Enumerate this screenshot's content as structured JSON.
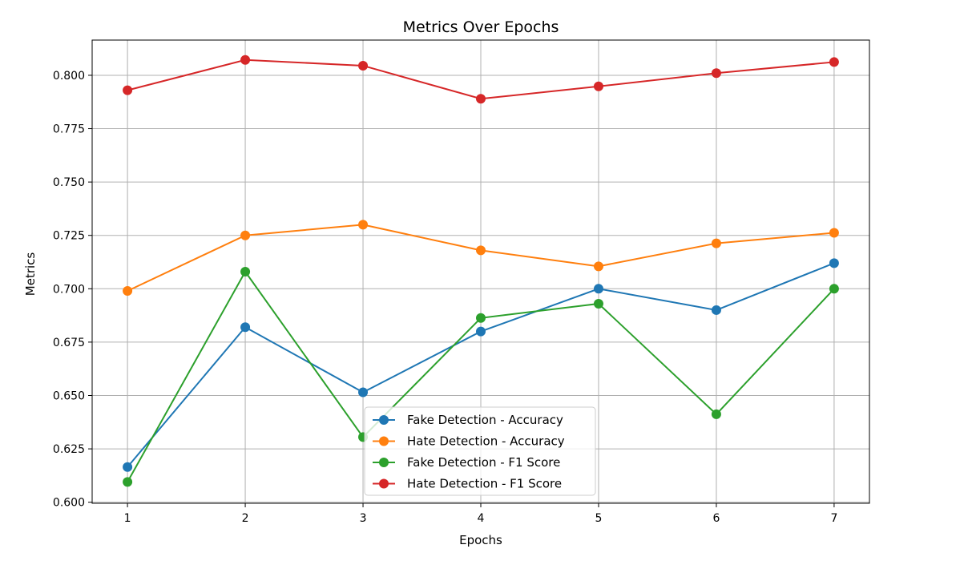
{
  "chart_data": {
    "type": "line",
    "title": "Metrics Over Epochs",
    "xlabel": "Epochs",
    "ylabel": "Metrics",
    "x": [
      1,
      2,
      3,
      4,
      5,
      6,
      7
    ],
    "xlim": [
      0.7,
      7.3
    ],
    "ylim": [
      0.5995,
      0.8165
    ],
    "yticks": [
      0.6,
      0.625,
      0.65,
      0.675,
      0.7,
      0.725,
      0.75,
      0.775,
      0.8
    ],
    "ytick_labels": [
      "0.600",
      "0.625",
      "0.650",
      "0.675",
      "0.700",
      "0.725",
      "0.750",
      "0.775",
      "0.800"
    ],
    "xticks": [
      1,
      2,
      3,
      4,
      5,
      6,
      7
    ],
    "xtick_labels": [
      "1",
      "2",
      "3",
      "4",
      "5",
      "6",
      "7"
    ],
    "grid": true,
    "legend_position": "bottom-center",
    "series": [
      {
        "name": "Fake Detection - Accuracy",
        "color": "#1f77b4",
        "values": [
          0.6165,
          0.682,
          0.6515,
          0.68,
          0.7,
          0.69,
          0.712
        ]
      },
      {
        "name": "Hate Detection - Accuracy",
        "color": "#ff7f0e",
        "values": [
          0.699,
          0.725,
          0.73,
          0.718,
          0.7105,
          0.7213,
          0.7262
        ]
      },
      {
        "name": "Fake Detection - F1 Score",
        "color": "#2ca02c",
        "values": [
          0.6095,
          0.708,
          0.6305,
          0.6863,
          0.693,
          0.6412,
          0.7
        ]
      },
      {
        "name": "Hate Detection - F1 Score",
        "color": "#d62728",
        "values": [
          0.793,
          0.8072,
          0.8045,
          0.789,
          0.7948,
          0.801,
          0.8062
        ]
      }
    ]
  }
}
